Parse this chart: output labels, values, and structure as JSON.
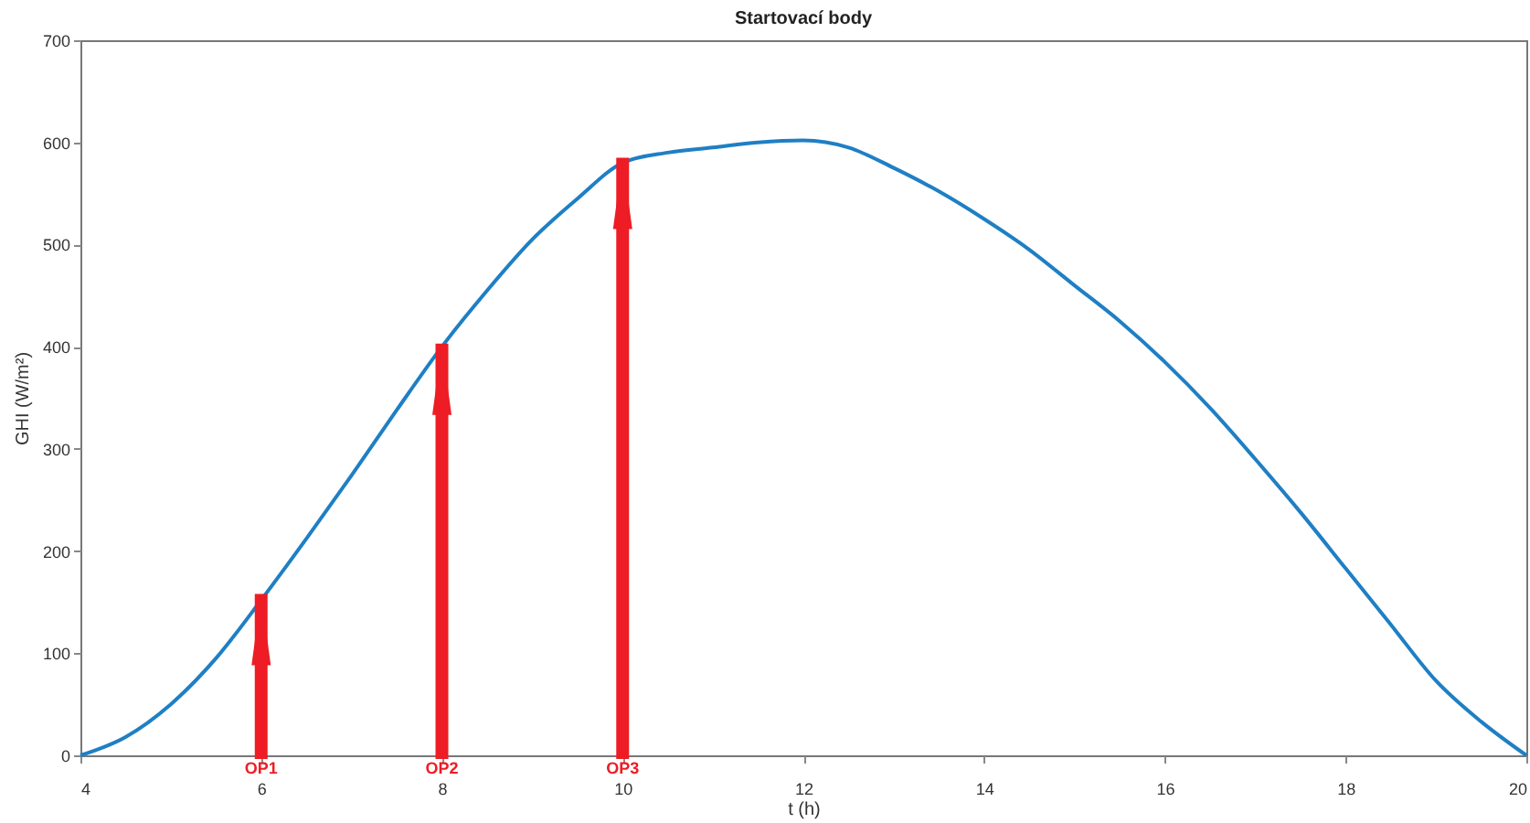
{
  "chart_data": {
    "type": "line",
    "title": "Startovací body",
    "xlabel": "t (h)",
    "ylabel": "GHI (W/m²)",
    "x": [
      4,
      4.5,
      5,
      5.5,
      6,
      6.5,
      7,
      7.5,
      8,
      8.5,
      9,
      9.5,
      10,
      10.5,
      11,
      11.5,
      12,
      12.5,
      13,
      13.5,
      14,
      14.5,
      15,
      15.5,
      16,
      16.5,
      17,
      17.5,
      18,
      18.5,
      19,
      19.5,
      20
    ],
    "series": [
      {
        "color": "#1f7fc4",
        "values": [
          0,
          18,
          50,
          95,
          152,
          212,
          274,
          338,
          400,
          455,
          505,
          545,
          580,
          590,
          595,
          600,
          602,
          595,
          575,
          552,
          525,
          495,
          460,
          425,
          385,
          340,
          290,
          238,
          183,
          128,
          73,
          33,
          0
        ]
      }
    ],
    "xlim": [
      4,
      20
    ],
    "ylim": [
      0,
      700
    ],
    "xticks": [
      4,
      6,
      8,
      10,
      12,
      14,
      16,
      18,
      20
    ],
    "yticks": [
      0,
      100,
      200,
      300,
      400,
      500,
      600,
      700
    ],
    "grid": false,
    "annotations": [
      {
        "text": "OP1",
        "x": 6,
        "y": 158
      },
      {
        "text": "OP2",
        "x": 8,
        "y": 403
      },
      {
        "text": "OP3",
        "x": 10,
        "y": 585
      }
    ]
  }
}
